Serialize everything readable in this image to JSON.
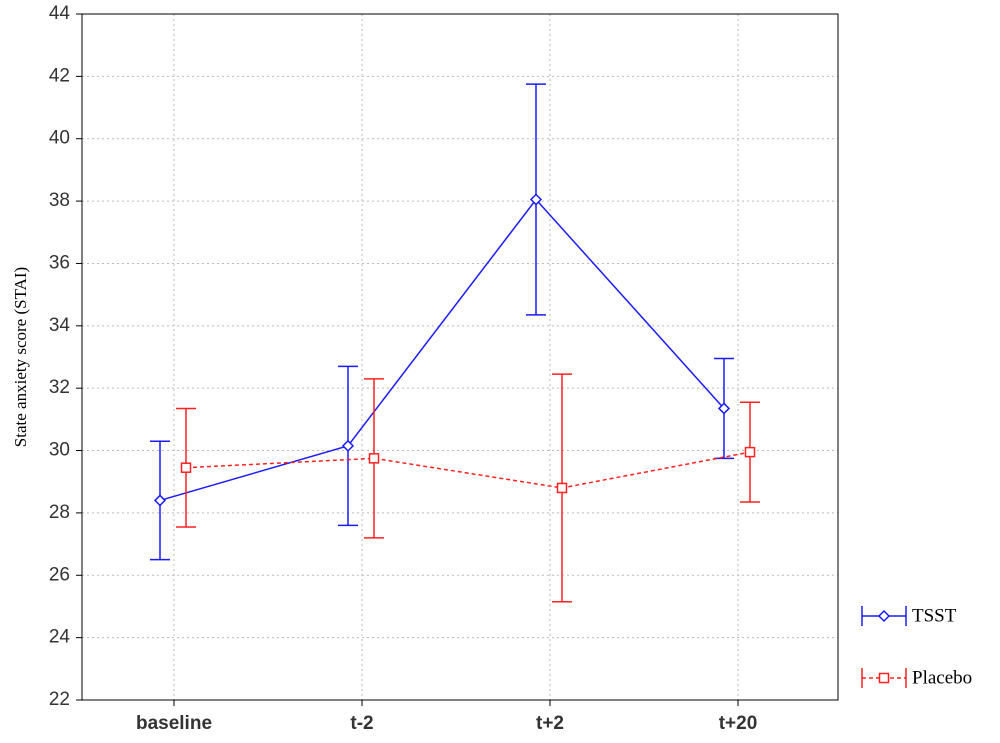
{
  "chart_data": {
    "type": "line",
    "ylabel": "State anxiety score (STAI)",
    "categories": [
      "baseline",
      "t-2",
      "t+2",
      "t+20"
    ],
    "series": [
      {
        "name": "TSST",
        "color": "#1a1aff",
        "marker": "diamond",
        "linestyle": "solid",
        "values": [
          28.4,
          30.15,
          38.05,
          31.35
        ],
        "errors": [
          1.9,
          2.55,
          3.7,
          1.6
        ]
      },
      {
        "name": "Placebo",
        "color": "#ff2020",
        "marker": "square",
        "linestyle": "dashed",
        "values": [
          29.45,
          29.75,
          28.8,
          29.95
        ],
        "errors": [
          1.9,
          2.55,
          3.65,
          1.6
        ]
      }
    ],
    "ylim": [
      22,
      44
    ],
    "yticks": [
      22,
      24,
      26,
      28,
      30,
      32,
      34,
      36,
      38,
      40,
      42,
      44
    ],
    "grid": true
  }
}
